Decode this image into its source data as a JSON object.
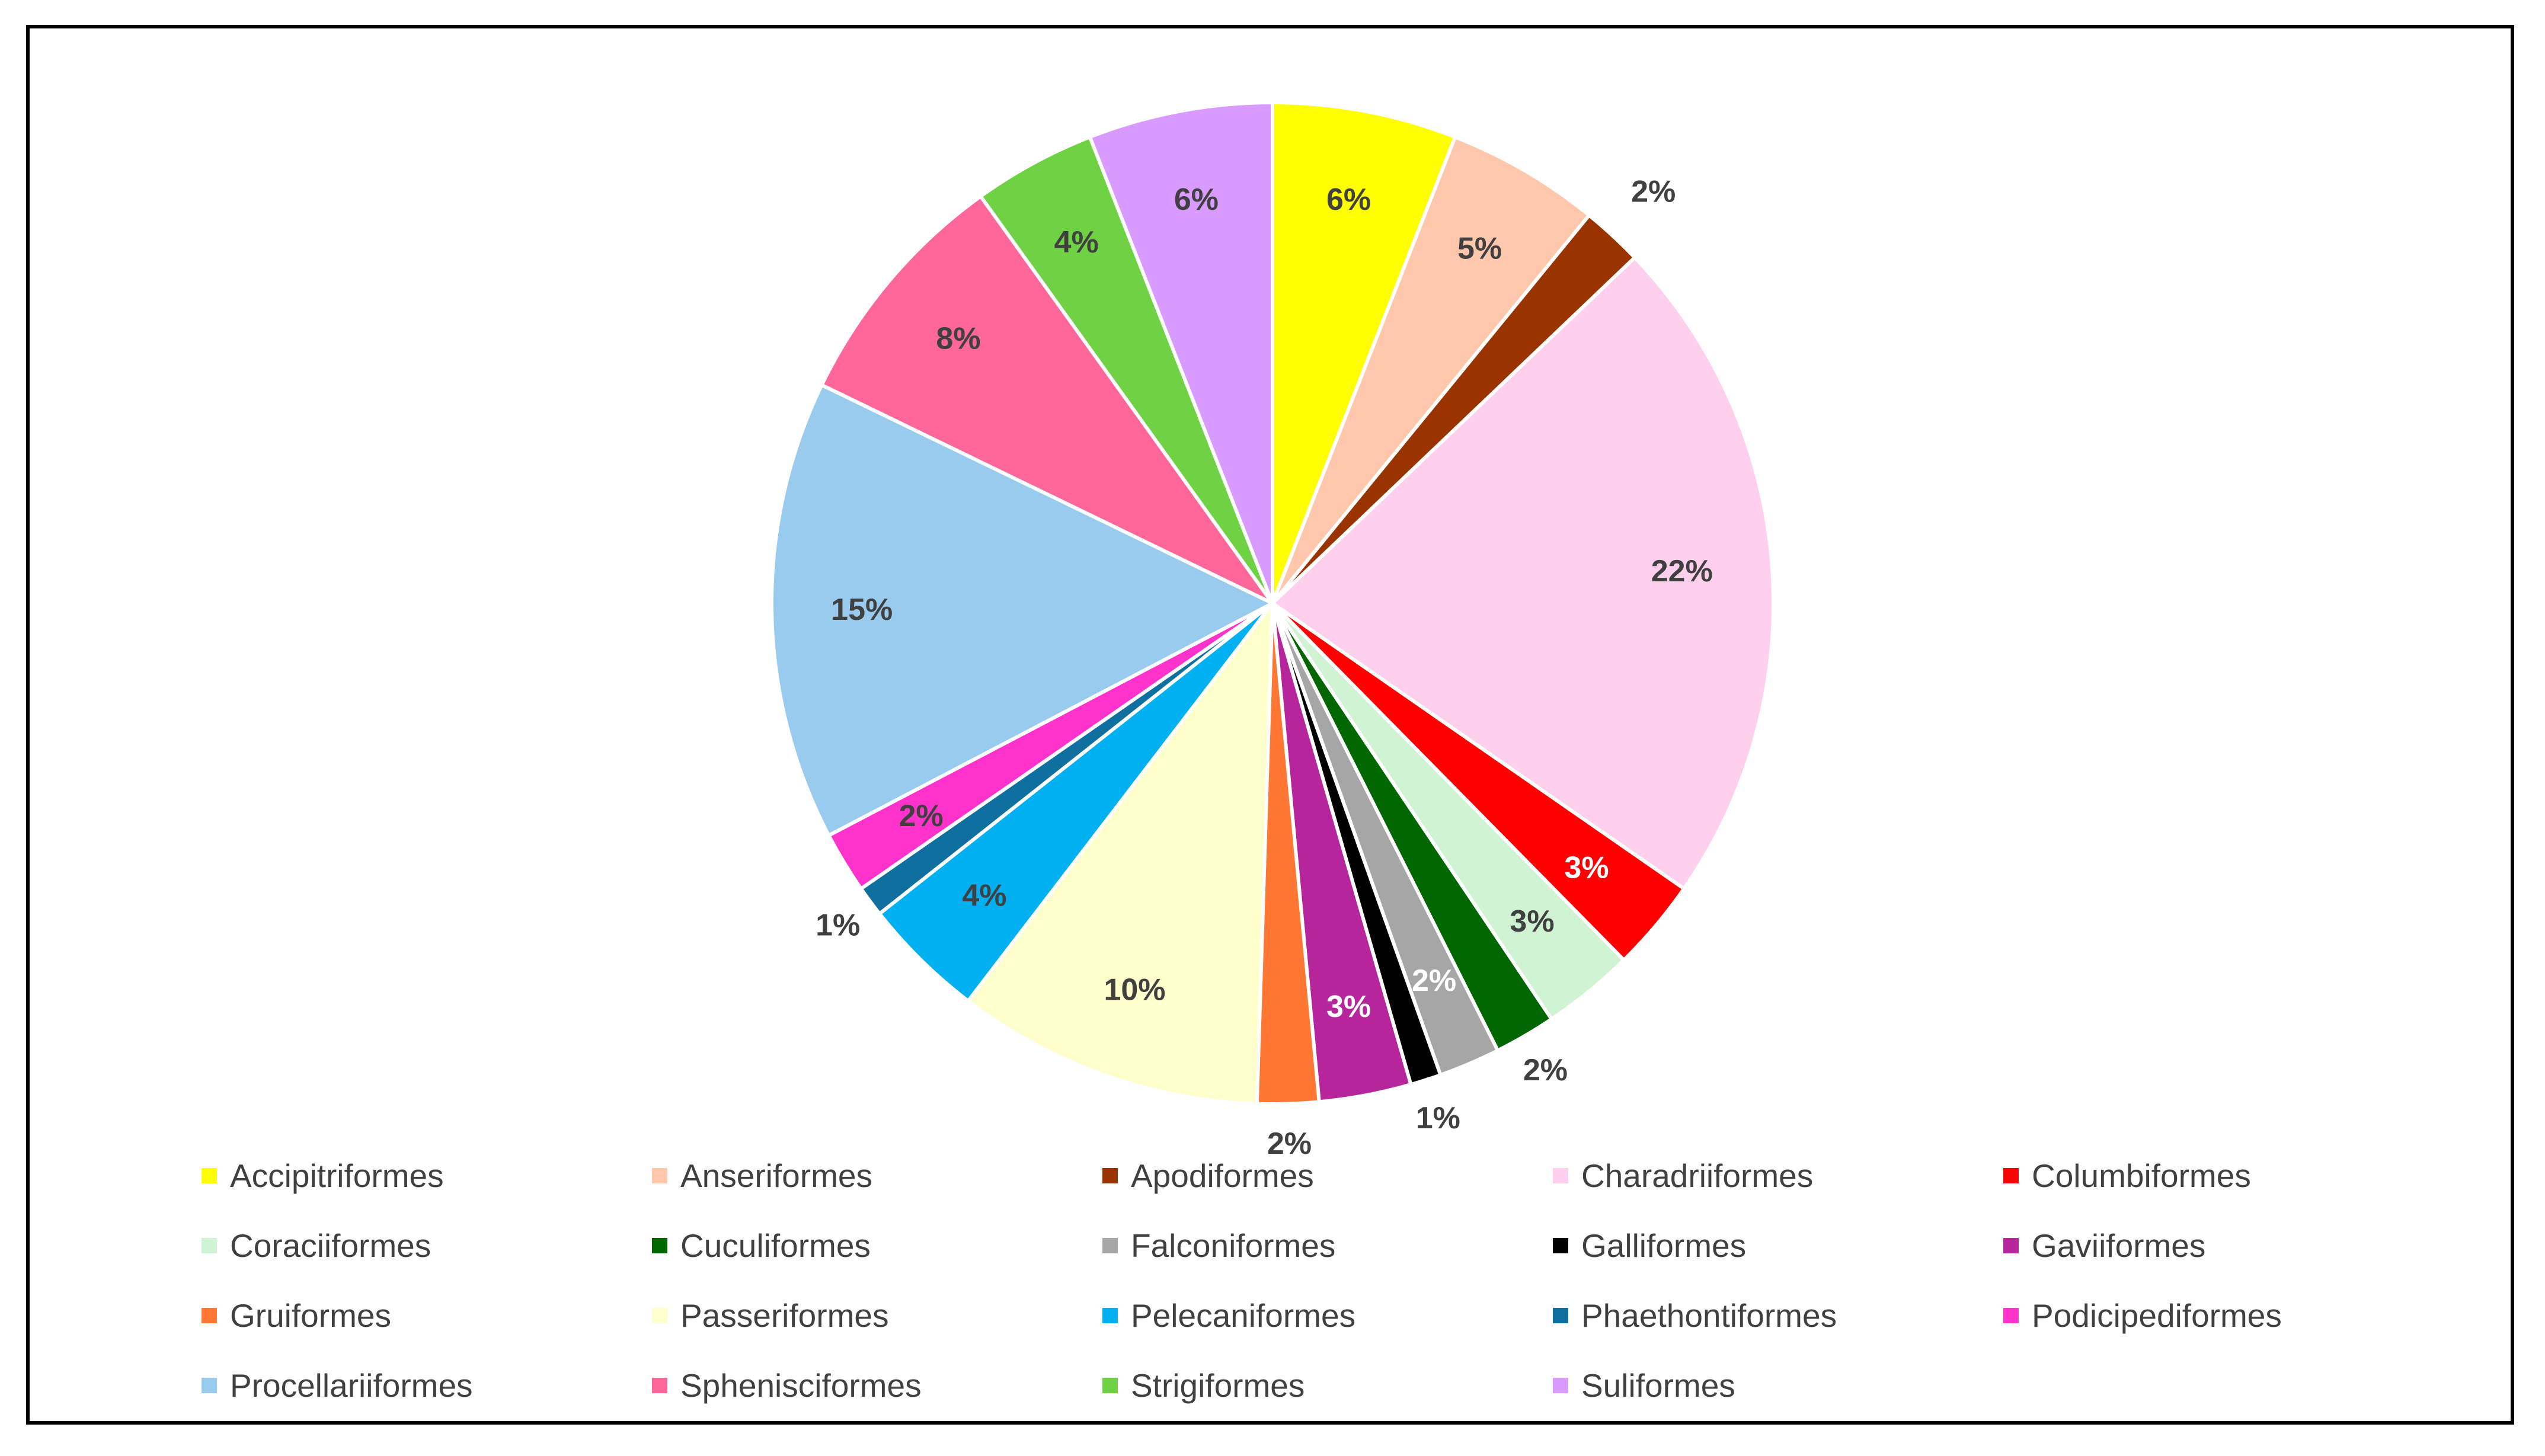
{
  "chart_data": {
    "type": "pie",
    "title": "",
    "slices": [
      {
        "label": "Accipitriformes",
        "value": 6,
        "display": "6%",
        "color": "#FFFF00",
        "label_color": "#404040"
      },
      {
        "label": "Anseriformes",
        "value": 5,
        "display": "5%",
        "color": "#FFC7AB",
        "label_color": "#404040"
      },
      {
        "label": "Apodiformes",
        "value": 2,
        "display": "2%",
        "color": "#993300",
        "label_color": "#404040"
      },
      {
        "label": "Charadriiformes",
        "value": 22,
        "display": "22%",
        "color": "#FFCFEE",
        "label_color": "#404040"
      },
      {
        "label": "Columbiformes",
        "value": 3,
        "display": "3%",
        "color": "#FF0000",
        "label_color": "#FFFFFF"
      },
      {
        "label": "Coraciiformes",
        "value": 3,
        "display": "3%",
        "color": "#CFF3D3",
        "label_color": "#404040"
      },
      {
        "label": "Cuculiformes",
        "value": 2,
        "display": "2%",
        "color": "#006600",
        "label_color": "#404040"
      },
      {
        "label": "Falconiformes",
        "value": 2,
        "display": "2%",
        "color": "#A6A6A6",
        "label_color": "#FFFFFF"
      },
      {
        "label": "Galliformes",
        "value": 1,
        "display": "1%",
        "color": "#000000",
        "label_color": "#404040"
      },
      {
        "label": "Gaviiformes",
        "value": 3,
        "display": "3%",
        "color": "#B7259C",
        "label_color": "#FFFFFF"
      },
      {
        "label": "Gruiformes",
        "value": 2,
        "display": "2%",
        "color": "#FF7733",
        "label_color": "#404040"
      },
      {
        "label": "Passeriformes",
        "value": 10,
        "display": "10%",
        "color": "#FFFFCC",
        "label_color": "#404040"
      },
      {
        "label": "Pelecaniformes",
        "value": 4,
        "display": "4%",
        "color": "#00B0F0",
        "label_color": "#404040"
      },
      {
        "label": "Phaethontiformes",
        "value": 1,
        "display": "1%",
        "color": "#0F6F9F",
        "label_color": "#404040"
      },
      {
        "label": "Podicipediformes",
        "value": 2,
        "display": "2%",
        "color": "#FF33CC",
        "label_color": "#404040"
      },
      {
        "label": "Procellariiformes",
        "value": 15,
        "display": "15%",
        "color": "#99CBEE",
        "label_color": "#404040"
      },
      {
        "label": "Sphenisciformes",
        "value": 8,
        "display": "8%",
        "color": "#FF6699",
        "label_color": "#404040"
      },
      {
        "label": "Strigiformes",
        "value": 4,
        "display": "4%",
        "color": "#6ED244",
        "label_color": "#404040"
      },
      {
        "label": "Suliformes",
        "value": 6,
        "display": "6%",
        "color": "#D99BFF",
        "label_color": "#404040"
      }
    ],
    "legend_position": "bottom",
    "label_format": "percent"
  }
}
